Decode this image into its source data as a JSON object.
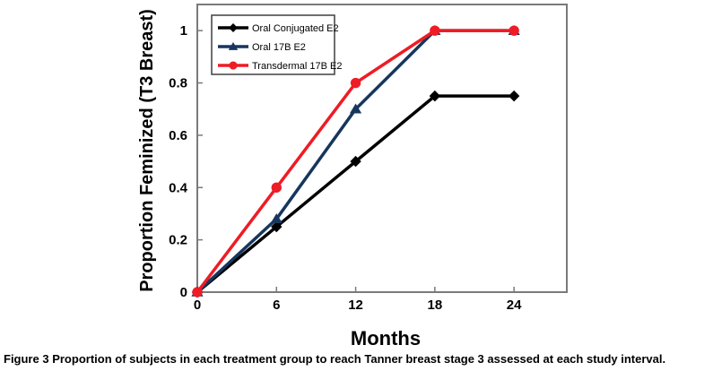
{
  "figure": {
    "caption_label": "Figure 3",
    "caption_text": "Proportion of subjects in each treatment group to reach Tanner breast stage 3 assessed at each study interval."
  },
  "colors": {
    "axis_frame": "#7a7a7a",
    "tick_text": "#000000",
    "legend_border": "#3f3f3f",
    "background": "#ffffff"
  },
  "chart_data": {
    "type": "line",
    "title": "",
    "xlabel": "Months",
    "ylabel": "Proportion Feminized (T3 Breast)",
    "x": [
      0,
      6,
      12,
      18,
      24
    ],
    "xticks": [
      "0",
      "6",
      "12",
      "18",
      "24"
    ],
    "yticks": [
      "0",
      "0.2",
      "0.4",
      "0.6",
      "0.8",
      "1"
    ],
    "ytick_values": [
      0,
      0.2,
      0.4,
      0.6,
      0.8,
      1
    ],
    "xlim": [
      0,
      28
    ],
    "ylim": [
      0,
      1.1
    ],
    "grid": false,
    "legend_position": "top-left-inside",
    "series": [
      {
        "name": "Oral Conjugated E2",
        "color": "#000000",
        "marker": "diamond",
        "values": [
          0,
          0.25,
          0.5,
          0.75,
          0.75
        ]
      },
      {
        "name": "Oral 17B E2",
        "color": "#17365d",
        "marker": "triangle",
        "values": [
          0,
          0.28,
          0.7,
          1,
          1
        ]
      },
      {
        "name": "Transdermal 17B E2",
        "color": "#ee1c25",
        "marker": "circle",
        "values": [
          0,
          0.4,
          0.8,
          1,
          1
        ]
      }
    ]
  }
}
